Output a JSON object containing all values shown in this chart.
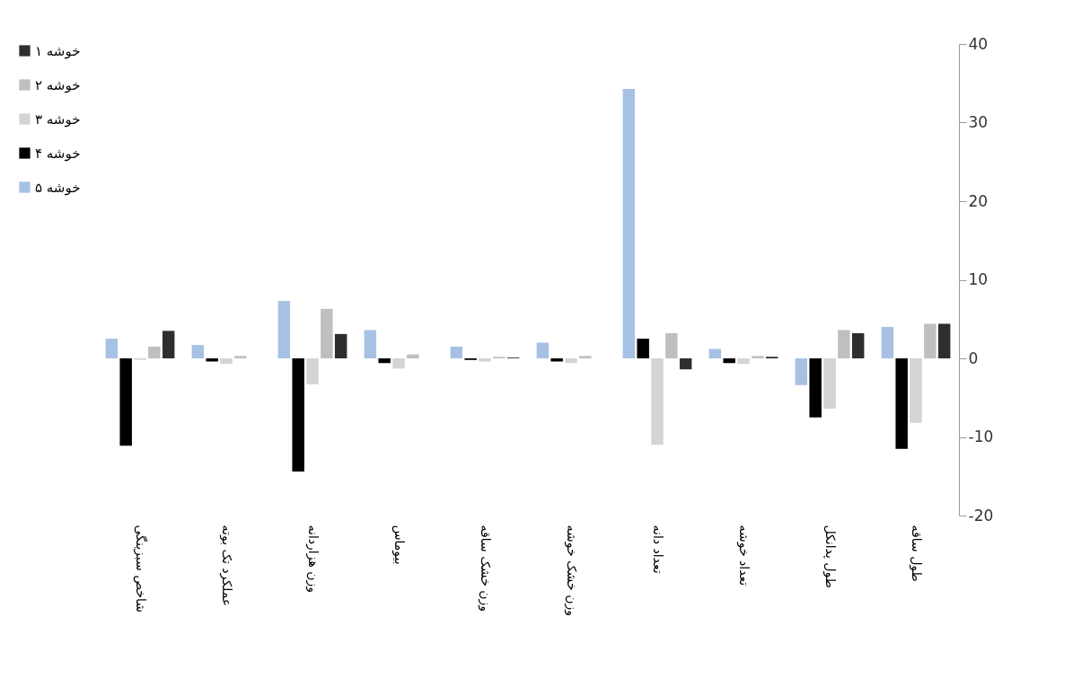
{
  "chart_data": {
    "type": "bar",
    "categories": [
      "شاخص سبزینگی",
      "عملکرد تک بوته",
      "وزن هزاردانه",
      "بیوماس",
      "وزن خشک ساقه",
      "وزن خشک خوشه",
      "تعداد دانه",
      "تعداد خوشه",
      "طول پدانکل",
      "طول ساقه"
    ],
    "series": [
      {
        "name": "خوشه ۱",
        "color": "#2e2e2e",
        "values": [
          3.5,
          0,
          3.1,
          0,
          0.1,
          0,
          -1.4,
          0.2,
          3.2,
          4.4
        ]
      },
      {
        "name": "خوشه ۲",
        "color": "#bfbfbf",
        "values": [
          1.5,
          0.3,
          6.3,
          0.5,
          0.2,
          0.3,
          3.2,
          0.3,
          3.6,
          4.4
        ]
      },
      {
        "name": "خوشه ۳",
        "color": "#d4d4d4",
        "values": [
          -0.2,
          -0.7,
          -3.3,
          -1.3,
          -0.4,
          -0.6,
          -11,
          -0.7,
          -6.4,
          -8.2
        ]
      },
      {
        "name": "خوشه ۴",
        "color": "#000000",
        "values": [
          -11.1,
          -0.4,
          -14.4,
          -0.6,
          -0.2,
          -0.4,
          2.5,
          -0.6,
          -7.5,
          -11.5
        ]
      },
      {
        "name": "خوشه ۵",
        "color": "#a6c1e4",
        "values": [
          2.5,
          1.7,
          7.3,
          3.6,
          1.5,
          2.0,
          34.3,
          1.2,
          -3.4,
          4.0
        ]
      }
    ],
    "ylim": [
      -20,
      40
    ],
    "yticks": [
      -20,
      -10,
      0,
      10,
      20,
      30,
      40
    ],
    "legend": "left",
    "grid": false
  }
}
